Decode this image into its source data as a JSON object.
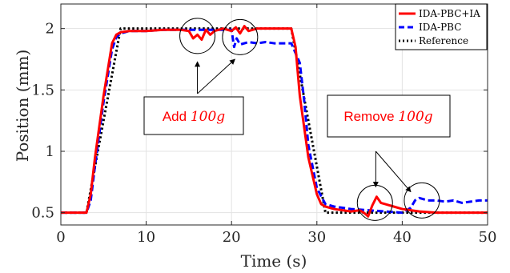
{
  "chart_data": {
    "type": "line",
    "xlabel": "Time (s)",
    "ylabel": "Position (mm)",
    "xlim": [
      0,
      50
    ],
    "ylim": [
      0.4,
      2.2
    ],
    "xticks": [
      0,
      10,
      20,
      30,
      40,
      50
    ],
    "yticks": [
      0.5,
      1,
      1.5,
      2
    ],
    "xtick_labels": [
      "0",
      "10",
      "20",
      "30",
      "40",
      "50"
    ],
    "ytick_labels": [
      "0.5",
      "1",
      "1.5",
      "2"
    ],
    "grid": true,
    "legend_position": "top-right",
    "series": [
      {
        "name": "IDA-PBC+IA",
        "color": "#ff0000",
        "style": "solid",
        "x": [
          0,
          3,
          3.5,
          4,
          5,
          6,
          6.5,
          7,
          8,
          10,
          12,
          14,
          15,
          15.5,
          16,
          16.5,
          17,
          17.5,
          18,
          19,
          20,
          20.5,
          21,
          21.5,
          22,
          23,
          24,
          25,
          26,
          27,
          27.5,
          28,
          29,
          30,
          30.5,
          31,
          32,
          33,
          34,
          35,
          35.5,
          36,
          36.5,
          37,
          37.5,
          38,
          39,
          40,
          41,
          42,
          44,
          46,
          48,
          50
        ],
        "y": [
          0.5,
          0.5,
          0.65,
          0.95,
          1.45,
          1.88,
          1.95,
          1.97,
          1.98,
          1.98,
          1.99,
          1.99,
          1.98,
          1.92,
          1.95,
          1.91,
          1.99,
          1.95,
          1.98,
          2.0,
          1.98,
          2.01,
          1.96,
          2.02,
          1.98,
          2.0,
          2.0,
          2.0,
          2.0,
          2.0,
          1.85,
          1.45,
          0.95,
          0.65,
          0.57,
          0.55,
          0.53,
          0.52,
          0.51,
          0.52,
          0.5,
          0.47,
          0.56,
          0.63,
          0.58,
          0.57,
          0.55,
          0.53,
          0.52,
          0.51,
          0.5,
          0.5,
          0.5,
          0.5
        ]
      },
      {
        "name": "IDA-PBC",
        "color": "#0000ff",
        "style": "dashed",
        "x": [
          0,
          3,
          3.5,
          4,
          5,
          6,
          6.5,
          7,
          8,
          10,
          12,
          14,
          16,
          18,
          19,
          20,
          20.3,
          20.6,
          21,
          22,
          23,
          24,
          25,
          26,
          27,
          28,
          28.5,
          29,
          30,
          31,
          32,
          33,
          34,
          36,
          38,
          40,
          41,
          41.5,
          42,
          42.5,
          43,
          44,
          45,
          46,
          47,
          48,
          49,
          50
        ],
        "y": [
          0.5,
          0.5,
          0.6,
          0.88,
          1.4,
          1.83,
          1.93,
          1.96,
          1.98,
          1.98,
          1.99,
          1.99,
          1.99,
          1.99,
          1.99,
          1.99,
          1.85,
          1.92,
          1.87,
          1.89,
          1.88,
          1.89,
          1.88,
          1.88,
          1.88,
          1.72,
          1.42,
          1.05,
          0.7,
          0.57,
          0.55,
          0.54,
          0.53,
          0.52,
          0.51,
          0.5,
          0.54,
          0.6,
          0.62,
          0.61,
          0.6,
          0.6,
          0.59,
          0.6,
          0.58,
          0.59,
          0.6,
          0.6
        ]
      },
      {
        "name": "Reference",
        "color": "#000000",
        "style": "dotted",
        "x": [
          0,
          3,
          7,
          27,
          31,
          50
        ],
        "y": [
          0.5,
          0.5,
          2.0,
          2.0,
          0.5,
          0.5
        ]
      }
    ],
    "annotations": [
      {
        "text_prefix": "Add ",
        "text_math": "100g"
      },
      {
        "text_prefix": "Remove ",
        "text_math": "100g"
      }
    ],
    "circle_markers": [
      {
        "x": 16.0,
        "y": 1.94
      },
      {
        "x": 21.0,
        "y": 1.93
      },
      {
        "x": 36.8,
        "y": 0.58
      },
      {
        "x": 42.3,
        "y": 0.6
      }
    ],
    "arrows": [
      {
        "from": [
          16.0,
          1.47
        ],
        "to": [
          16.0,
          1.73
        ]
      },
      {
        "from": [
          16.0,
          1.47
        ],
        "to": [
          20.4,
          1.75
        ]
      },
      {
        "from": [
          36.9,
          1.0
        ],
        "to": [
          36.9,
          0.71
        ]
      },
      {
        "from": [
          36.9,
          1.0
        ],
        "to": [
          41.0,
          0.67
        ]
      }
    ]
  }
}
